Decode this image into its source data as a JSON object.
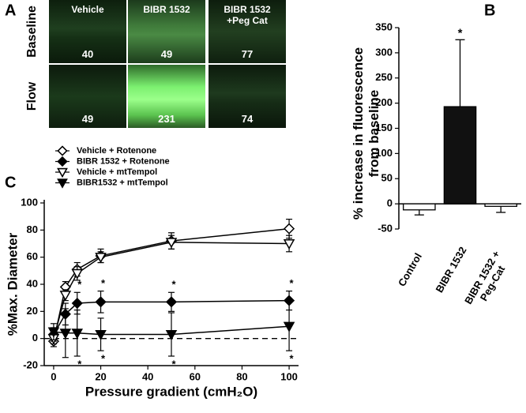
{
  "panel_labels": [
    "A",
    "B",
    "C"
  ],
  "micrographs": {
    "columns": [
      "Vehicle",
      "BIBR 1532",
      "BIBR 1532 +Peg Cat"
    ],
    "rows": [
      {
        "label": "Baseline",
        "values": [
          40,
          49,
          77
        ]
      },
      {
        "label": "Flow",
        "values": [
          49,
          231,
          74
        ]
      }
    ]
  },
  "chart_data": [
    {
      "type": "bar",
      "y_label": "% increase in fluorescence from baseline",
      "categories": [
        "Control",
        "BIBR 1532",
        "BIBR 1532 + Peg-Cat"
      ],
      "values": [
        -12,
        193,
        -5
      ],
      "errors": [
        10,
        133,
        12
      ],
      "significance": [
        null,
        "*",
        null
      ],
      "colors": [
        "#ffffff",
        "#111111",
        "#ffffff"
      ],
      "ylim": [
        -50,
        350
      ],
      "yticks": [
        -50,
        0,
        50,
        100,
        150,
        200,
        250,
        300,
        350
      ]
    },
    {
      "type": "line",
      "x_label": "Pressure gradient  (cmH₂O)",
      "y_label": "%Max. Diameter",
      "x": [
        0,
        5,
        10,
        20,
        50,
        100
      ],
      "series": [
        {
          "name": "Vehicle + Rotenone",
          "color": "#000000",
          "marker": "diamond",
          "filled": false,
          "values": [
            -2,
            38,
            51,
            61,
            72,
            81
          ],
          "errors": [
            4,
            4,
            5,
            5,
            6,
            7
          ]
        },
        {
          "name": "BIBR 1532 + Rotenone",
          "color": "#000000",
          "marker": "diamond",
          "filled": true,
          "values": [
            3,
            18,
            26,
            27,
            27,
            28
          ],
          "errors": [
            5,
            8,
            8,
            8,
            7,
            7
          ],
          "significance": [
            null,
            null,
            "*",
            "*",
            "*",
            "*"
          ],
          "significance_position": "above"
        },
        {
          "name": "Vehicle + mtTempol",
          "color": "#000000",
          "marker": "triangle-down",
          "filled": false,
          "values": [
            0,
            32,
            48,
            60,
            71,
            70
          ],
          "errors": [
            4,
            4,
            5,
            4,
            5,
            6
          ]
        },
        {
          "name": "BIBR1532 + mtTempol",
          "color": "#000000",
          "marker": "triangle-down",
          "filled": true,
          "values": [
            5,
            4,
            4,
            3,
            3,
            9
          ],
          "errors": [
            6,
            18,
            17,
            12,
            16,
            18
          ],
          "significance": [
            null,
            null,
            "*",
            "*",
            "*",
            "*"
          ],
          "significance_position": "below"
        }
      ],
      "xlim": [
        -4,
        104
      ],
      "xticks": [
        0,
        20,
        40,
        60,
        80,
        100
      ],
      "ylim": [
        -20,
        100
      ],
      "yticks": [
        -20,
        0,
        20,
        40,
        60,
        80,
        100
      ],
      "zero_line": true
    }
  ]
}
